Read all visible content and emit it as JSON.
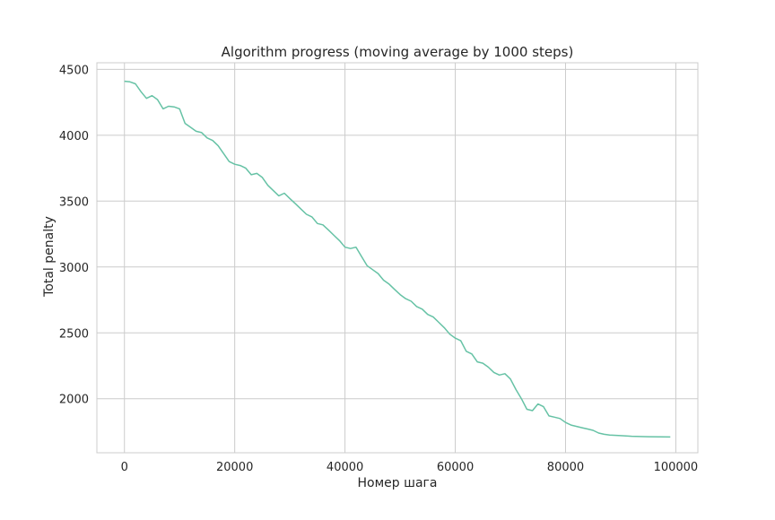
{
  "chart_data": {
    "type": "line",
    "title": "Algorithm progress (moving average by 1000 steps)",
    "xlabel": "Номер шага",
    "ylabel": "Total penalty",
    "xlim": [
      -5000,
      104000
    ],
    "ylim": [
      1590,
      4550
    ],
    "grid": true,
    "line_color": "#66c2a5",
    "x_ticks": [
      {
        "value": 0,
        "label": "0"
      },
      {
        "value": 20000,
        "label": "20000"
      },
      {
        "value": 40000,
        "label": "40000"
      },
      {
        "value": 60000,
        "label": "60000"
      },
      {
        "value": 80000,
        "label": "80000"
      },
      {
        "value": 100000,
        "label": "100000"
      }
    ],
    "y_ticks": [
      {
        "value": 2000,
        "label": "2000"
      },
      {
        "value": 2500,
        "label": "2500"
      },
      {
        "value": 3000,
        "label": "3000"
      },
      {
        "value": 3500,
        "label": "3500"
      },
      {
        "value": 4000,
        "label": "4000"
      },
      {
        "value": 4500,
        "label": "4500"
      }
    ],
    "series": [
      {
        "x": [
          0,
          1000,
          2000,
          3000,
          4000,
          5000,
          6000,
          7000,
          8000,
          9000,
          10000,
          11000,
          12000,
          13000,
          14000,
          15000,
          16000,
          17000,
          18000,
          19000,
          20000,
          21000,
          22000,
          23000,
          24000,
          25000,
          26000,
          27000,
          28000,
          29000,
          30000,
          31000,
          32000,
          33000,
          34000,
          35000,
          36000,
          37000,
          38000,
          39000,
          40000,
          41000,
          42000,
          43000,
          44000,
          45000,
          46000,
          47000,
          48000,
          49000,
          50000,
          51000,
          52000,
          53000,
          54000,
          55000,
          56000,
          57000,
          58000,
          59000,
          60000,
          61000,
          62000,
          63000,
          64000,
          65000,
          66000,
          67000,
          68000,
          69000,
          70000,
          71000,
          72000,
          73000,
          74000,
          75000,
          76000,
          77000,
          78000,
          79000,
          80000,
          81000,
          82000,
          83000,
          84000,
          85000,
          86000,
          87000,
          88000,
          90000,
          92000,
          95000,
          99000
        ],
        "y": [
          4410,
          4405,
          4390,
          4330,
          4280,
          4300,
          4270,
          4200,
          4220,
          4215,
          4200,
          4090,
          4060,
          4030,
          4020,
          3980,
          3960,
          3920,
          3860,
          3800,
          3780,
          3770,
          3750,
          3700,
          3710,
          3680,
          3620,
          3580,
          3540,
          3560,
          3520,
          3480,
          3440,
          3400,
          3380,
          3330,
          3320,
          3280,
          3240,
          3200,
          3150,
          3140,
          3150,
          3080,
          3010,
          2980,
          2950,
          2900,
          2870,
          2830,
          2790,
          2760,
          2740,
          2700,
          2680,
          2640,
          2620,
          2580,
          2540,
          2490,
          2460,
          2440,
          2360,
          2340,
          2280,
          2270,
          2240,
          2200,
          2180,
          2190,
          2150,
          2070,
          2000,
          1920,
          1910,
          1960,
          1940,
          1870,
          1860,
          1850,
          1820,
          1800,
          1790,
          1780,
          1770,
          1760,
          1740,
          1730,
          1725,
          1720,
          1715,
          1712,
          1710
        ]
      }
    ]
  }
}
